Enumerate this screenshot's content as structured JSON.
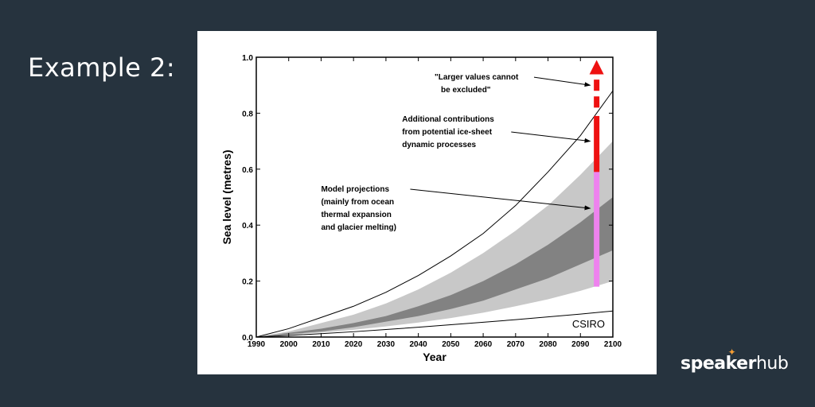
{
  "slide": {
    "title": "Example 2:"
  },
  "brand": {
    "part1": "spea",
    "part2": "er",
    "part3": "hub",
    "k": "k"
  },
  "colors": {
    "background": "#26333e",
    "band_outer": "#c8c8c8",
    "band_inner": "#828282",
    "model_bar": "#ee82ee",
    "ice_bar": "#ee1111"
  },
  "chart_data": {
    "type": "area",
    "title": "",
    "xlabel": "Year",
    "ylabel": "Sea level (metres)",
    "xlim": [
      1990,
      2100
    ],
    "ylim": [
      0,
      1.0
    ],
    "x_ticks": [
      "1990",
      "2000",
      "2010",
      "2020",
      "2030",
      "2040",
      "2050",
      "2060",
      "2070",
      "2080",
      "2090",
      "2100"
    ],
    "y_ticks": [
      "0.0",
      "0.2",
      "0.4",
      "0.6",
      "0.8",
      "1.0"
    ],
    "x": [
      1990,
      2000,
      2010,
      2020,
      2030,
      2040,
      2050,
      2060,
      2070,
      2080,
      2090,
      2100
    ],
    "series": [
      {
        "name": "upper bound",
        "values": [
          0.0,
          0.03,
          0.07,
          0.11,
          0.16,
          0.22,
          0.29,
          0.37,
          0.47,
          0.59,
          0.72,
          0.88
        ]
      },
      {
        "name": "outer band upper",
        "values": [
          0.0,
          0.02,
          0.05,
          0.08,
          0.12,
          0.17,
          0.23,
          0.3,
          0.38,
          0.47,
          0.58,
          0.7
        ]
      },
      {
        "name": "inner band upper",
        "values": [
          0.0,
          0.015,
          0.03,
          0.05,
          0.075,
          0.11,
          0.15,
          0.2,
          0.26,
          0.33,
          0.41,
          0.5
        ]
      },
      {
        "name": "inner band lower",
        "values": [
          0.0,
          0.01,
          0.02,
          0.035,
          0.055,
          0.075,
          0.1,
          0.13,
          0.17,
          0.21,
          0.26,
          0.31
        ]
      },
      {
        "name": "outer band lower",
        "values": [
          0.0,
          0.008,
          0.016,
          0.026,
          0.038,
          0.052,
          0.068,
          0.087,
          0.11,
          0.135,
          0.165,
          0.2
        ]
      },
      {
        "name": "lower bound",
        "values": [
          0.0,
          0.006,
          0.012,
          0.019,
          0.027,
          0.035,
          0.044,
          0.053,
          0.062,
          0.072,
          0.082,
          0.093
        ]
      }
    ],
    "bars": [
      {
        "name": "model projections",
        "x": 2095,
        "from": 0.18,
        "to": 0.59
      },
      {
        "name": "ice-sheet contributions",
        "x": 2095,
        "from": 0.59,
        "to": 0.79
      },
      {
        "name": "larger values cannot be excluded",
        "x": 2095,
        "segments": [
          [
            0.82,
            0.86
          ],
          [
            0.88,
            0.92
          ]
        ],
        "arrow_top": 0.99
      }
    ],
    "annotations": [
      {
        "lines": [
          "\"Larger values cannot",
          "be excluded\""
        ],
        "text_at": [
          2045,
          0.92
        ],
        "arrow_to": [
          2093,
          0.9
        ]
      },
      {
        "lines": [
          "Additional contributions",
          "from potential ice-sheet",
          "dynamic processes"
        ],
        "text_at": [
          2035,
          0.77
        ],
        "arrow_to": [
          2093,
          0.7
        ]
      },
      {
        "lines": [
          "Model projections",
          "(mainly from ocean",
          "thermal expansion",
          "and glacier melting)"
        ],
        "text_at": [
          2010,
          0.52
        ],
        "arrow_to": [
          2093,
          0.46
        ]
      }
    ],
    "watermark": "CSIRO",
    "grid": false
  }
}
